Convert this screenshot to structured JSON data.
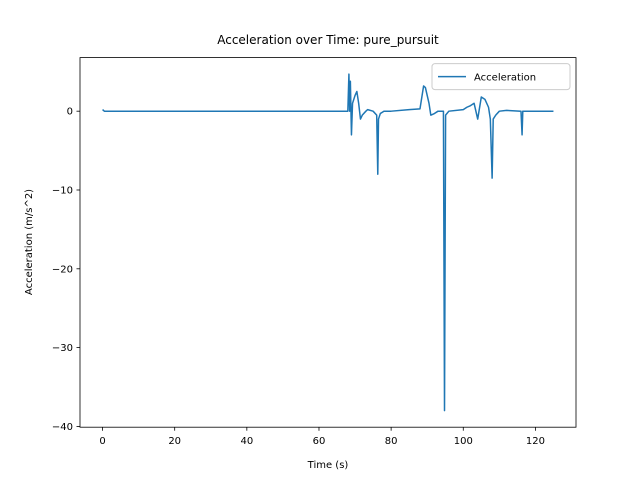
{
  "chart_data": {
    "type": "line",
    "title": "Acceleration over Time: pure_pursuit",
    "x_label": "Time (s)",
    "y_label": "Acceleration (m/s^2)",
    "x": [
      0,
      0.5,
      68,
      68.3,
      68.5,
      68.7,
      69,
      69.3,
      70,
      70.5,
      71,
      71.5,
      72,
      73,
      73.5,
      75,
      76,
      76.3,
      76.5,
      77,
      78,
      80,
      85,
      88,
      89,
      89.5,
      90,
      90.5,
      91,
      92,
      93,
      94.5,
      94.8,
      95.1,
      96,
      100,
      101,
      102,
      103,
      104,
      105,
      106,
      107,
      107.5,
      108,
      108.3,
      109,
      110,
      112,
      116,
      116.3,
      116.5,
      125
    ],
    "series": [
      {
        "name": "Acceleration",
        "color": "#1f77b4",
        "values": [
          0.2,
          0,
          0,
          4.7,
          0,
          3.8,
          -3,
          1,
          2,
          2.5,
          1,
          -1,
          -0.5,
          0,
          0.2,
          0,
          -0.5,
          -8,
          -1,
          -0.3,
          0,
          0,
          0.2,
          0.3,
          3.2,
          3,
          2,
          1,
          -0.5,
          -0.3,
          0,
          0,
          -38,
          -0.5,
          0,
          0.2,
          0.5,
          0.7,
          1,
          -1,
          1.8,
          1.5,
          0.5,
          -1,
          -8.5,
          -1,
          -0.5,
          0,
          0.1,
          0,
          -3,
          0,
          0
        ]
      }
    ],
    "xlim": [
      -6.25,
      131.25
    ],
    "ylim": [
      -40.1,
      6.8
    ],
    "xticks": [
      0,
      20,
      40,
      60,
      80,
      100,
      120
    ],
    "yticks": [
      {
        "value": -40,
        "label": "−40"
      },
      {
        "value": -30,
        "label": "−30"
      },
      {
        "value": -20,
        "label": "−20"
      },
      {
        "value": -10,
        "label": "−10"
      },
      0
    ],
    "legend": "upper right"
  }
}
